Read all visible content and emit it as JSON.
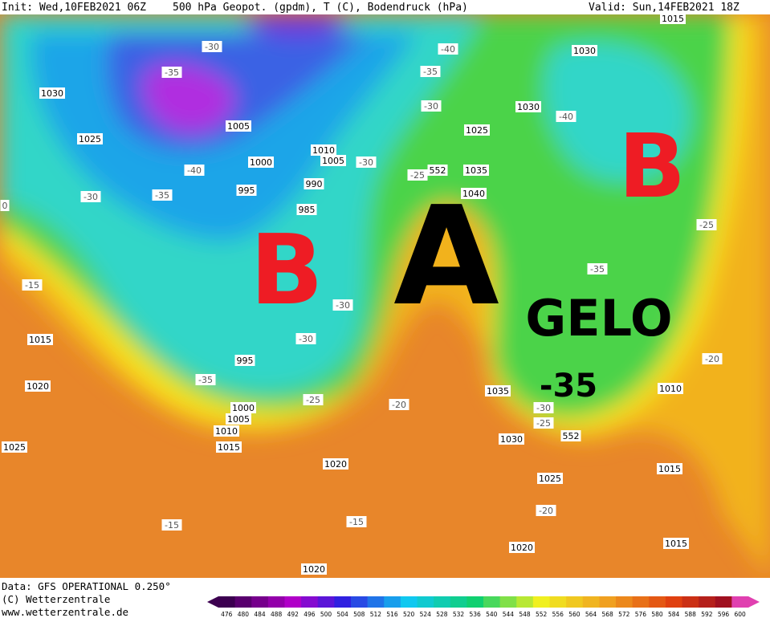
{
  "header": {
    "init": "Init: Wed,10FEB2021 06Z",
    "title": "500 hPa Geopot. (gpdm), T (C), Bodendruck (hPa)",
    "valid": "Valid: Sun,14FEB2021 18Z"
  },
  "annotations": {
    "low_west": "B",
    "high": "A",
    "low_east": "B",
    "gelo": "GELO",
    "gelo_temp": "-35"
  },
  "isobar_labels": [
    "1030",
    "1025",
    "1005",
    "1010",
    "1005",
    "1000",
    "990",
    "995",
    "985",
    "995",
    "1000",
    "1005",
    "1010",
    "1015",
    "1020",
    "1025",
    "1020",
    "1015",
    "1030",
    "1015",
    "1030",
    "1025",
    "1035",
    "1040",
    "1035",
    "1030",
    "1025",
    "1020",
    "1020",
    "1010",
    "1015",
    "1015",
    "552",
    "552"
  ],
  "temp_labels": [
    "-30",
    "-35",
    "-40",
    "-35",
    "-30",
    "-15",
    "-30",
    "-25",
    "-30",
    "-30",
    "-35",
    "-25",
    "-20",
    "-30",
    "-25",
    "-35",
    "-40",
    "-30",
    "-35",
    "-40",
    "-25",
    "-20",
    "-15",
    "-15",
    "-20",
    "0"
  ],
  "footer": {
    "data": "Data: GFS OPERATIONAL 0.250°",
    "copyright": "(C) Wetterzentrale",
    "url": "www.wetterzentrale.de"
  },
  "colorbar": [
    476,
    480,
    484,
    488,
    492,
    496,
    500,
    504,
    508,
    512,
    516,
    520,
    524,
    528,
    532,
    536,
    540,
    544,
    548,
    552,
    556,
    560,
    564,
    568,
    572,
    576,
    580,
    584,
    588,
    592,
    596,
    600
  ]
}
